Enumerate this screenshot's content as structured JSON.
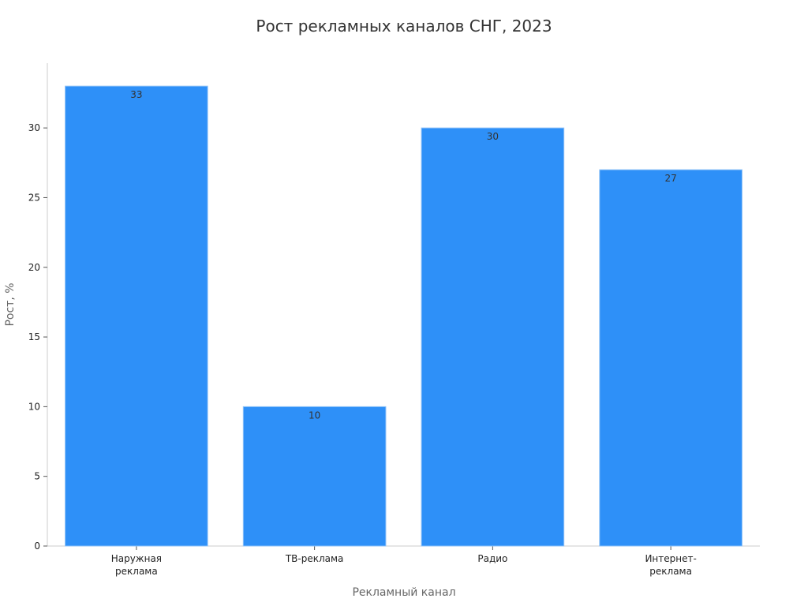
{
  "chart_data": {
    "type": "bar",
    "title": "Рост рекламных каналов СНГ, 2023",
    "xlabel": "Рекламный канал",
    "ylabel": "Рост, %",
    "categories": [
      [
        "Наружная",
        "реклама"
      ],
      [
        "ТВ-реклама"
      ],
      [
        "Радио"
      ],
      [
        "Интернет-",
        "реклама"
      ]
    ],
    "values": [
      33,
      10,
      30,
      27
    ],
    "data_labels": [
      "33",
      "10",
      "30",
      "27"
    ],
    "ylim": [
      0,
      34.65
    ],
    "yticks": [
      0,
      5,
      10,
      15,
      20,
      25,
      30
    ],
    "ytick_labels": [
      "0",
      "5",
      "10",
      "15",
      "20",
      "25",
      "30"
    ],
    "bar_color": "#2e90f8",
    "grid": false,
    "legend": "none"
  }
}
